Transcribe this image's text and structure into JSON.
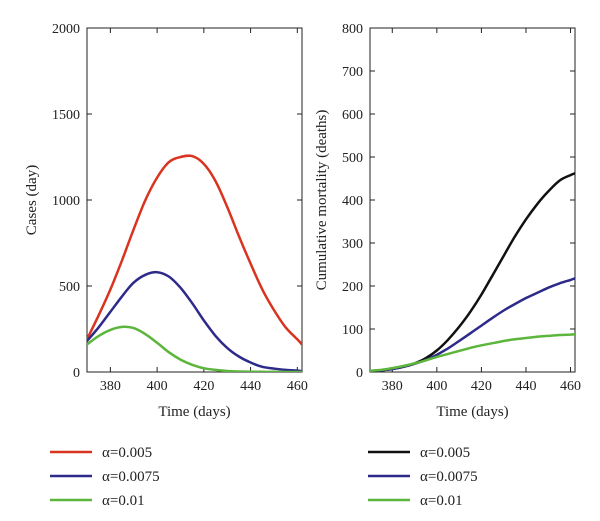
{
  "chart_data": [
    {
      "type": "line",
      "title": "",
      "xlabel": "Time (days)",
      "ylabel": "Cases (day)",
      "xlim": [
        370,
        462
      ],
      "ylim": [
        0,
        2000
      ],
      "xticks": [
        380,
        400,
        420,
        440,
        460
      ],
      "yticks": [
        0,
        500,
        1000,
        1500,
        2000
      ],
      "grid": false,
      "legend_position": "below",
      "series": [
        {
          "name": "α=0.005",
          "color": "#d9341f",
          "x": [
            370,
            375,
            380,
            385,
            390,
            395,
            400,
            405,
            410,
            415,
            420,
            425,
            430,
            435,
            440,
            445,
            450,
            455,
            460,
            462
          ],
          "y": [
            190,
            330,
            480,
            650,
            830,
            1000,
            1130,
            1220,
            1250,
            1255,
            1210,
            1110,
            960,
            790,
            630,
            480,
            360,
            260,
            190,
            160
          ]
        },
        {
          "name": "α=0.0075",
          "color": "#2e2a8a",
          "x": [
            370,
            375,
            380,
            385,
            390,
            395,
            400,
            405,
            410,
            415,
            420,
            425,
            430,
            435,
            440,
            445,
            450,
            455,
            460,
            462
          ],
          "y": [
            180,
            260,
            350,
            440,
            520,
            565,
            580,
            555,
            490,
            400,
            300,
            210,
            140,
            90,
            55,
            30,
            20,
            12,
            8,
            5
          ]
        },
        {
          "name": "α=0.01",
          "color": "#5cb63c",
          "x": [
            370,
            375,
            380,
            385,
            390,
            395,
            400,
            405,
            410,
            415,
            420,
            425,
            430,
            435,
            440,
            445,
            450,
            455,
            460,
            462
          ],
          "y": [
            160,
            210,
            245,
            262,
            255,
            220,
            170,
            115,
            72,
            42,
            22,
            12,
            6,
            3,
            2,
            1,
            1,
            0,
            0,
            0
          ]
        }
      ]
    },
    {
      "type": "line",
      "title": "",
      "xlabel": "Time (days)",
      "ylabel": "Cumulative mortality (deaths)",
      "xlim": [
        370,
        462
      ],
      "ylim": [
        0,
        800
      ],
      "xticks": [
        380,
        400,
        420,
        440,
        460
      ],
      "yticks": [
        0,
        100,
        200,
        300,
        400,
        500,
        600,
        700,
        800
      ],
      "grid": false,
      "legend_position": "below",
      "series": [
        {
          "name": "α=0.005",
          "color": "#111111",
          "x": [
            370,
            375,
            380,
            385,
            390,
            395,
            400,
            405,
            410,
            415,
            420,
            425,
            430,
            435,
            440,
            445,
            450,
            455,
            460,
            462
          ],
          "y": [
            2,
            4,
            7,
            12,
            20,
            32,
            50,
            75,
            105,
            140,
            180,
            225,
            270,
            315,
            355,
            390,
            420,
            445,
            458,
            462
          ]
        },
        {
          "name": "α=0.0075",
          "color": "#2e2a8a",
          "x": [
            370,
            375,
            380,
            385,
            390,
            395,
            400,
            405,
            410,
            415,
            420,
            425,
            430,
            435,
            440,
            445,
            450,
            455,
            460,
            462
          ],
          "y": [
            2,
            4,
            7,
            12,
            19,
            28,
            40,
            55,
            72,
            90,
            108,
            126,
            143,
            158,
            172,
            184,
            196,
            206,
            214,
            218
          ]
        },
        {
          "name": "α=0.01",
          "color": "#5cb63c",
          "x": [
            370,
            375,
            380,
            385,
            390,
            395,
            400,
            405,
            410,
            415,
            420,
            425,
            430,
            435,
            440,
            445,
            450,
            455,
            460,
            462
          ],
          "y": [
            3,
            5,
            9,
            14,
            20,
            27,
            35,
            42,
            49,
            56,
            62,
            67,
            72,
            76,
            79,
            82,
            84,
            86,
            87,
            88
          ]
        }
      ]
    }
  ]
}
